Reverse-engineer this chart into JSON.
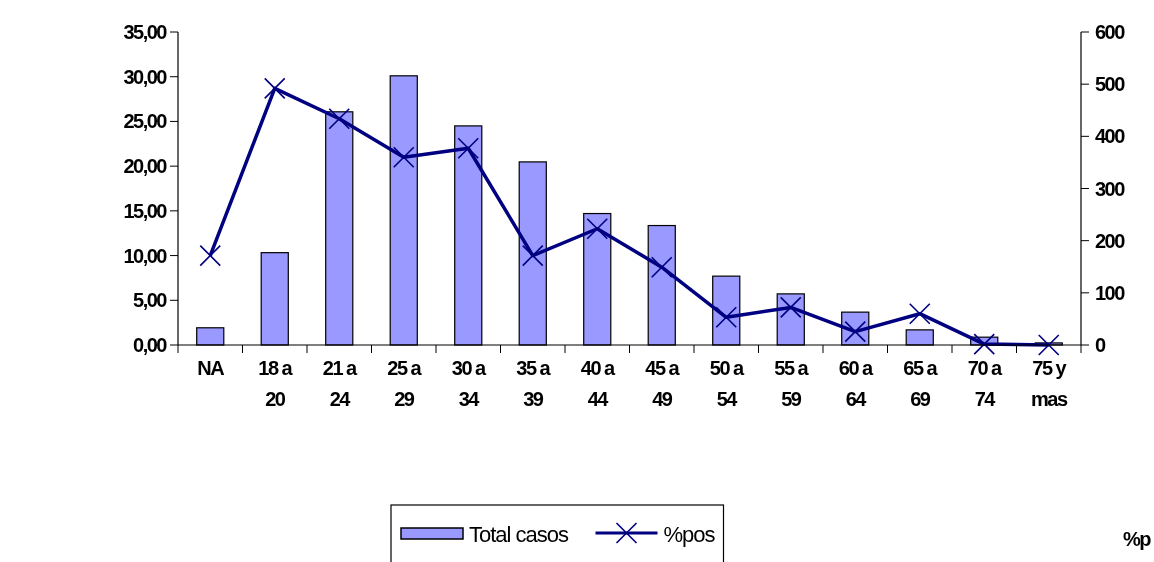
{
  "chart_data": {
    "type": "bar",
    "categories": [
      "NA",
      "18 a 20",
      "21 a 24",
      "25 a 29",
      "30 a 34",
      "35 a 39",
      "40 a 44",
      "45 a 49",
      "50 a 54",
      "55 a 59",
      "60 a 64",
      "65 a 69",
      "70 a 74",
      "75 y mas"
    ],
    "series": [
      {
        "name": "Total casos",
        "axis": "y2",
        "color": "#9999ff",
        "values": [
          33,
          177,
          447,
          516,
          420,
          351,
          252,
          229,
          132,
          98,
          63,
          29,
          15,
          4
        ]
      },
      {
        "name": "%pos",
        "type": "line",
        "axis": "y",
        "color": "#000080",
        "marker": "cross",
        "values": [
          10.0,
          28.7,
          25.3,
          21.0,
          22.0,
          10.0,
          13.0,
          8.7,
          3.1,
          4.2,
          1.5,
          3.5,
          0.1,
          0
        ]
      }
    ],
    "ylim": [
      0,
      35
    ],
    "yticks": [
      {
        "value": 0,
        "label": "0,00"
      },
      {
        "value": 5,
        "label": "5,00"
      },
      {
        "value": 10,
        "label": "10,00"
      },
      {
        "value": 15,
        "label": "15,00"
      },
      {
        "value": 20,
        "label": "20,00"
      },
      {
        "value": 25,
        "label": "25,00"
      },
      {
        "value": 30,
        "label": "30,00"
      },
      {
        "value": 35,
        "label": "35,00"
      }
    ],
    "y2lim": [
      0,
      600
    ],
    "y2ticks": [
      0,
      100,
      200,
      300,
      400,
      500,
      600
    ],
    "legend": "bottom",
    "annotations": [
      "%p"
    ]
  }
}
